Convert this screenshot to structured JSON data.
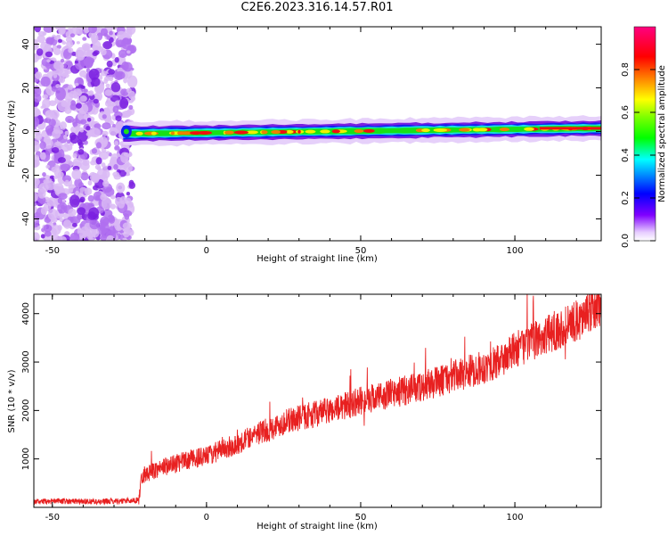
{
  "title": "C2E6.2023.316.14.57.R01",
  "colorbar": {
    "label": "Normalized spectral amplitude",
    "ticks": [
      "0.0",
      "0.2",
      "0.4",
      "0.6",
      "0.8"
    ],
    "tick_values": [
      0.0,
      0.2,
      0.4,
      0.6,
      0.8
    ],
    "range": [
      0,
      1
    ]
  },
  "chart_data": [
    {
      "type": "heatmap",
      "xlabel": "Height of straight line (km)",
      "ylabel": "Frequency (Hz)",
      "xlim": [
        -56,
        128
      ],
      "ylim": [
        -50,
        48
      ],
      "xticks": [
        -50,
        0,
        50,
        100
      ],
      "yticks": [
        -40,
        -20,
        0,
        20,
        40
      ],
      "noise_region_x": [
        -56,
        -24
      ],
      "signal_start_x": -27,
      "signal_center_freq_start": -1,
      "signal_center_freq_end": 1.5,
      "signal_halfwidth_hz": 2.5,
      "colors": [
        "#ffffff",
        "#d9b8f5",
        "#7a1fe0",
        "#1020f0",
        "#18e0e0",
        "#18e018",
        "#f0f000",
        "#f08000",
        "#f01010"
      ]
    },
    {
      "type": "line",
      "xlabel": "Height of straight line (km)",
      "ylabel": "SNR (10 * v/v)",
      "xlim": [
        -56,
        128
      ],
      "ylim": [
        0,
        4400
      ],
      "xticks": [
        -50,
        0,
        50,
        100
      ],
      "yticks": [
        1000,
        2000,
        3000,
        4000
      ],
      "series": [
        {
          "color": "#e82020",
          "x": [
            -56,
            -45,
            -35,
            -25,
            -22,
            -21,
            -15,
            -10,
            -5,
            0,
            5,
            10,
            15,
            20,
            25,
            30,
            40,
            50,
            60,
            70,
            80,
            90,
            95,
            100,
            110,
            120,
            128
          ],
          "y": [
            120,
            130,
            120,
            140,
            150,
            650,
            820,
            900,
            1000,
            1050,
            1200,
            1300,
            1500,
            1600,
            1750,
            1850,
            2000,
            2200,
            2350,
            2500,
            2700,
            2900,
            3000,
            3250,
            3550,
            3850,
            4150
          ]
        }
      ]
    }
  ]
}
